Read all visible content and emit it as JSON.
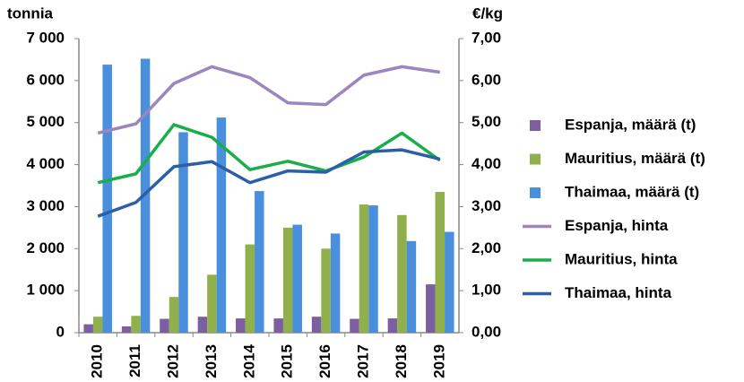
{
  "chart_data": {
    "type": "bar",
    "ylabel": "tonnia",
    "y2label": "€/kg",
    "categories": [
      "2010",
      "2011",
      "2012",
      "2013",
      "2014",
      "2015",
      "2016",
      "2017",
      "2018",
      "2019"
    ],
    "series": [
      {
        "name": "Espanja, määrä (t)",
        "type": "bar",
        "color": "#7b5fa0",
        "values": [
          200,
          150,
          330,
          380,
          340,
          340,
          380,
          330,
          340,
          1150
        ]
      },
      {
        "name": "Mauritius, määrä (t)",
        "type": "bar",
        "color": "#8fb04a",
        "values": [
          380,
          400,
          850,
          1380,
          2100,
          2500,
          2000,
          3050,
          2800,
          3350
        ]
      },
      {
        "name": "Thaimaa, määrä (t)",
        "type": "bar",
        "color": "#4a8fde",
        "values": [
          6380,
          6520,
          4770,
          5120,
          3370,
          2570,
          2360,
          3030,
          2180,
          2400
        ]
      },
      {
        "name": "Espanja, hinta",
        "type": "line",
        "axis": "y2",
        "color": "#9b86c0",
        "values": [
          4.75,
          4.97,
          5.93,
          6.33,
          6.07,
          5.47,
          5.43,
          6.13,
          6.33,
          6.2
        ]
      },
      {
        "name": "Mauritius, hinta",
        "type": "line",
        "axis": "y2",
        "color": "#1aae4a",
        "values": [
          3.57,
          3.78,
          4.95,
          4.65,
          3.88,
          4.08,
          3.85,
          4.18,
          4.75,
          4.1
        ]
      },
      {
        "name": "Thaimaa, hinta",
        "type": "line",
        "axis": "y2",
        "color": "#2c5fa6",
        "values": [
          2.77,
          3.1,
          3.95,
          4.07,
          3.57,
          3.85,
          3.82,
          4.3,
          4.35,
          4.13
        ]
      }
    ],
    "ylim": [
      0,
      7000
    ],
    "yticks": [
      0,
      {
        "value": 1000,
        "label": "1 000"
      },
      {
        "value": 2000,
        "label": "2 000"
      },
      {
        "value": 3000,
        "label": "3 000"
      },
      {
        "value": 4000,
        "label": "4 000"
      },
      {
        "value": 5000,
        "label": "5 000"
      },
      {
        "value": 6000,
        "label": "6 000"
      },
      {
        "value": 7000,
        "label": "7 000"
      }
    ],
    "y2lim": [
      0,
      7
    ],
    "y2ticks": [
      {
        "value": 0,
        "label": "0,00"
      },
      {
        "value": 1,
        "label": "1,00"
      },
      {
        "value": 2,
        "label": "2,00"
      },
      {
        "value": 3,
        "label": "3,00"
      },
      {
        "value": 4,
        "label": "4,00"
      },
      {
        "value": 5,
        "label": "5,00"
      },
      {
        "value": 6,
        "label": "6,00"
      },
      {
        "value": 7,
        "label": "7,00"
      }
    ],
    "grid": false,
    "legend": "right"
  }
}
